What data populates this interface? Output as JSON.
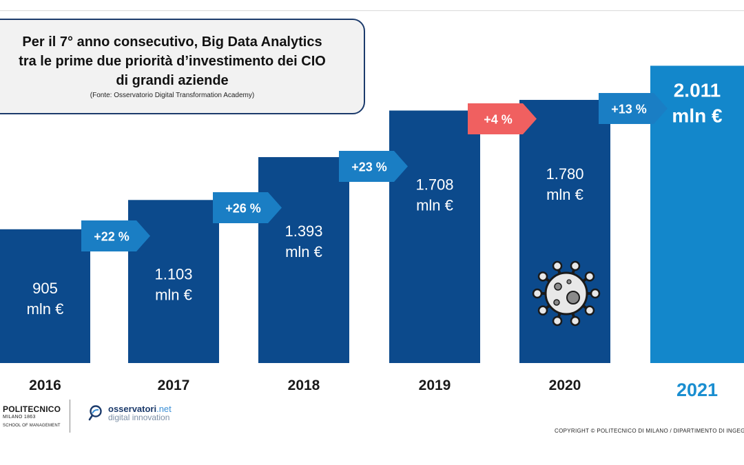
{
  "header": {
    "title": "Per il 7° anno consecutivo, Big Data Analytics\ntra le prime due priorità d’investimento dei CIO\ndi grandi aziende",
    "source": "(Fonte: Osservatorio Digital Transformation Academy)"
  },
  "chart_data": {
    "type": "bar",
    "unit": "mln €",
    "categories": [
      "2016",
      "2017",
      "2018",
      "2019",
      "2020",
      "2021"
    ],
    "values": [
      905,
      1103,
      1393,
      1708,
      1780,
      2011
    ],
    "value_labels": [
      "905",
      "1.103",
      "1.393",
      "1.708",
      "1.780",
      "2.011"
    ],
    "growth": [
      {
        "to": "2017",
        "label": "+22 %",
        "color": "#1a7ec4"
      },
      {
        "to": "2018",
        "label": "+26 %",
        "color": "#1a7ec4"
      },
      {
        "to": "2019",
        "label": "+23 %",
        "color": "#1a7ec4"
      },
      {
        "to": "2020",
        "label": "+4 %",
        "color": "#f06060"
      },
      {
        "to": "2021",
        "label": "+13 %",
        "color": "#1a7ec4"
      }
    ],
    "highlight": "2021",
    "annotation_icon": {
      "year": "2020",
      "icon": "virus-icon"
    },
    "colors": {
      "bar": "#0c4a8c",
      "highlight_bar": "#1387cb",
      "year_label": "#1a1a1a",
      "highlight_year": "#1a8ed0"
    }
  },
  "footer": {
    "polimi": {
      "name": "POLITECNICO",
      "city": "MILANO 1863",
      "school": "SCHOOL OF MANAGEMENT"
    },
    "osservatori": {
      "name": "osservatori",
      "tld": ".net",
      "subtitle": "digital innovation"
    },
    "copyright": "COPYRIGHT © POLITECNICO DI MILANO / DIPARTIMENTO DI INGEGNER"
  }
}
